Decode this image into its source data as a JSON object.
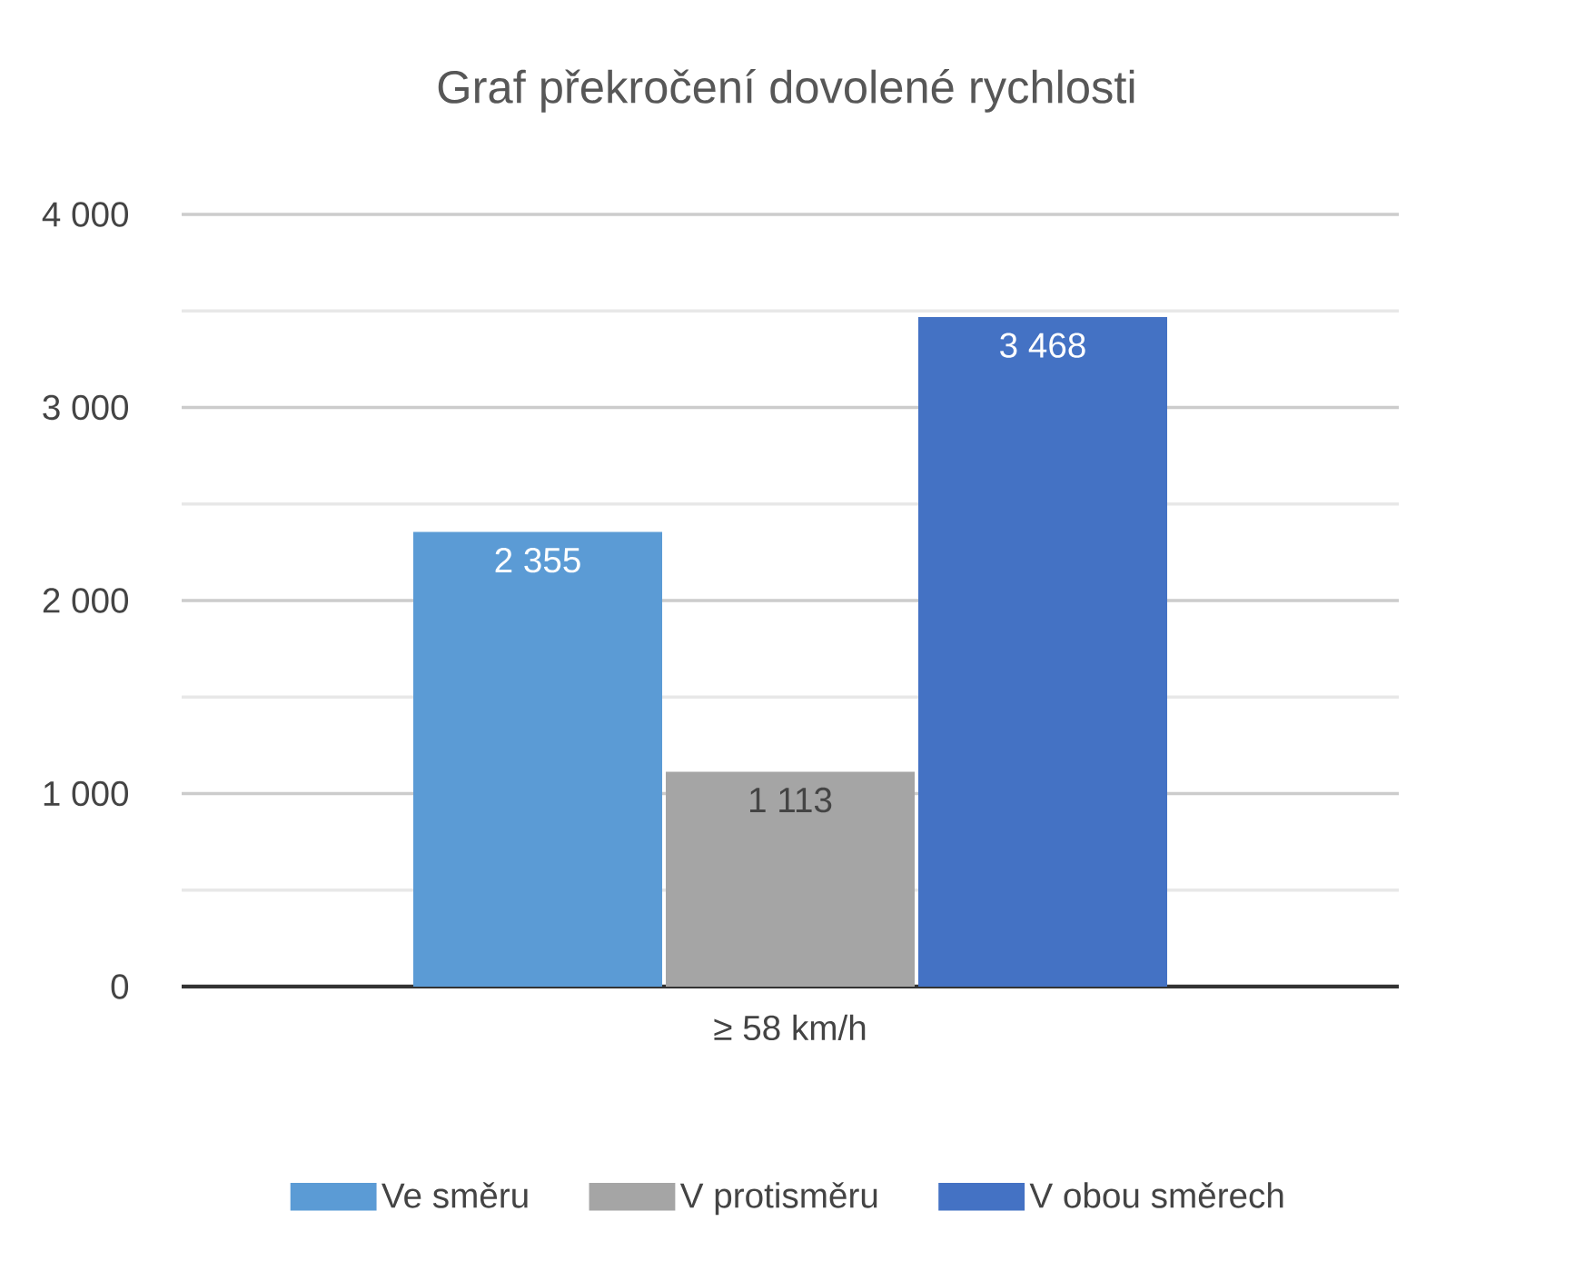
{
  "chart_data": {
    "type": "bar",
    "title": "Graf překročení dovolené rychlosti",
    "categories": [
      "≥ 58 km/h"
    ],
    "series": [
      {
        "name": "Ve směru",
        "color": "#5b9bd5",
        "values": [
          2355
        ],
        "value_labels": [
          "2 355"
        ]
      },
      {
        "name": "V protisměru",
        "color": "#a5a5a5",
        "values": [
          1113
        ],
        "value_labels": [
          "1 113"
        ]
      },
      {
        "name": "V obou směrech",
        "color": "#4472c4",
        "values": [
          3468
        ],
        "value_labels": [
          "3 468"
        ]
      }
    ],
    "ylim": [
      0,
      4000
    ],
    "yticks": [
      {
        "value": 0,
        "label": "0"
      },
      {
        "value": 500,
        "label": null
      },
      {
        "value": 1000,
        "label": "1 000"
      },
      {
        "value": 1500,
        "label": null
      },
      {
        "value": 2000,
        "label": "2 000"
      },
      {
        "value": 2500,
        "label": null
      },
      {
        "value": 3000,
        "label": "3 000"
      },
      {
        "value": 3500,
        "label": null
      },
      {
        "value": 4000,
        "label": "4 000"
      }
    ],
    "grid": "y",
    "legend": "bottom"
  }
}
